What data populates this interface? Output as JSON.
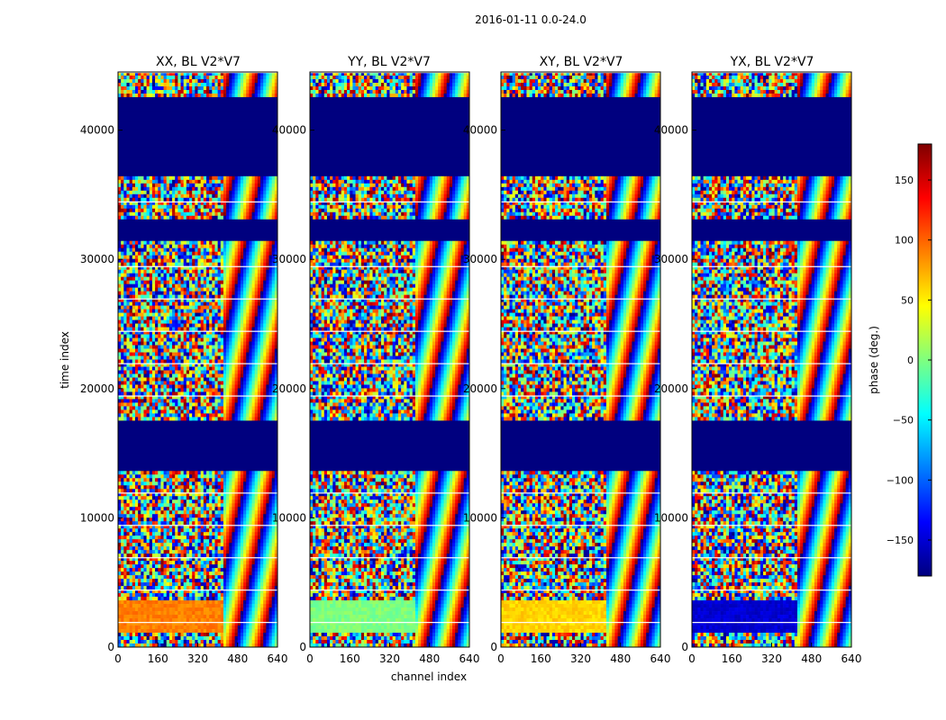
{
  "chart_data": {
    "type": "heatmap",
    "title": "2016-01-11 0.0-24.0",
    "xlabel": "channel index",
    "ylabel": "time index",
    "xlim": [
      0,
      640
    ],
    "ylim": [
      0,
      44500
    ],
    "xticks": [
      "0",
      "160",
      "320",
      "480",
      "640"
    ],
    "yticks": [
      "0",
      "10000",
      "20000",
      "30000",
      "40000"
    ],
    "colorbar": {
      "label": "phase (deg.)",
      "range": [
        -180,
        180
      ],
      "ticks": [
        "−150",
        "−100",
        "−50",
        "0",
        "50",
        "100",
        "150"
      ],
      "colormap": "jet",
      "colors": [
        "#00007f",
        "#0000ff",
        "#007fff",
        "#00ffff",
        "#7fff7f",
        "#ffff00",
        "#ff7f00",
        "#ff0000",
        "#7f0000"
      ]
    },
    "panels": [
      {
        "title": "XX, BL V2*V7",
        "low_band_phase_deg": 90
      },
      {
        "title": "YY, BL V2*V7",
        "low_band_phase_deg": 0
      },
      {
        "title": "XY, BL V2*V7",
        "low_band_phase_deg": 60
      },
      {
        "title": "YX, BL V2*V7",
        "low_band_phase_deg": -150
      }
    ],
    "flagged_time_ranges": [
      [
        13500,
        17500
      ],
      [
        31500,
        33000
      ],
      [
        36500,
        39500
      ],
      [
        39600,
        42500
      ]
    ]
  }
}
